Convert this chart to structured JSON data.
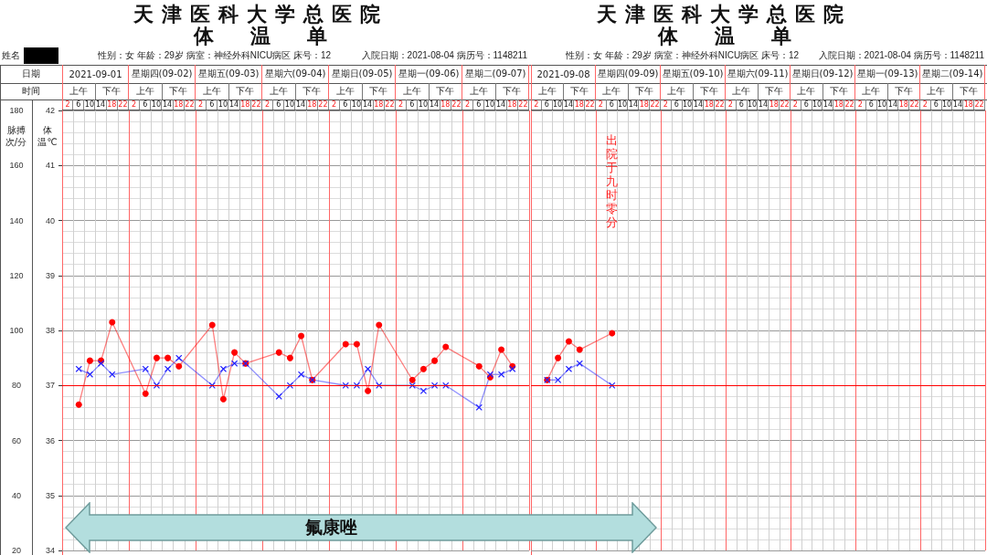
{
  "chart_data": [
    {
      "type": "line",
      "title": "天津医科大学总医院",
      "subtitle": "体温单",
      "ylabel": "体温℃",
      "y2label": "脉搏次/分",
      "categories": [
        "2",
        "6",
        "10",
        "14",
        "18",
        "22",
        "2",
        "6",
        "10",
        "14",
        "18",
        "22",
        "2",
        "6",
        "10",
        "14",
        "18",
        "22",
        "2",
        "6",
        "10",
        "14",
        "18",
        "22",
        "2",
        "6",
        "10",
        "14",
        "18",
        "22",
        "2",
        "6",
        "10",
        "14",
        "18",
        "22",
        "2",
        "6",
        "10",
        "14",
        "18",
        "22"
      ],
      "series": [
        {
          "color": "#ff0000",
          "axis": "y2",
          "marker": "circle",
          "values": [
            null,
            73,
            89,
            89,
            103,
            null,
            null,
            77,
            90,
            90,
            87,
            null,
            null,
            102,
            75,
            92,
            88,
            null,
            null,
            92,
            90,
            98,
            82,
            null,
            null,
            95,
            95,
            78,
            102,
            null,
            null,
            82,
            86,
            89,
            94,
            null,
            null,
            87,
            83,
            93,
            87,
            null
          ]
        },
        {
          "color": "#2222ff",
          "axis": "y",
          "marker": "cross",
          "values": [
            null,
            37.3,
            37.2,
            37.4,
            37.2,
            null,
            null,
            37.3,
            37.0,
            37.3,
            37.5,
            null,
            null,
            37.0,
            37.3,
            37.4,
            37.4,
            null,
            null,
            36.8,
            37.0,
            37.2,
            37.1,
            null,
            null,
            37.0,
            37.0,
            37.3,
            37.0,
            null,
            null,
            37.0,
            36.9,
            37.0,
            37.0,
            null,
            null,
            36.6,
            37.2,
            37.2,
            37.3,
            null
          ]
        }
      ],
      "ylim": [
        34,
        42
      ],
      "yticks": [
        34,
        35,
        36,
        37,
        38,
        39,
        40,
        41,
        42
      ],
      "y2lim": [
        20,
        180
      ],
      "y2ticks": [
        20,
        40,
        60,
        80,
        100,
        120,
        140,
        160,
        180
      ],
      "grid": true,
      "ref_lines": [
        {
          "axis": "y",
          "value": 37,
          "color": "#ff0000"
        }
      ],
      "annotations": [
        "氟康唑",
        "姓名",
        "性别：女  年龄：29岁  病室：神经外科NICU病区 床号：12",
        "入院日期：2021-08-04 病历号：1148211",
        "日期",
        "时间",
        "2021-09-01",
        "星期四(09-02)",
        "星期五(09-03)",
        "星期六(09-04)",
        "星期日(09-05)",
        "星期一(09-06)",
        "星期二(09-07)",
        "上午",
        "下午",
        "上午",
        "下午",
        "上午",
        "下午",
        "上午",
        "下午",
        "上午",
        "下午",
        "上午",
        "下午",
        "上午",
        "下午"
      ]
    },
    {
      "type": "line",
      "title": "天津医科大学总医院",
      "subtitle": "体温单",
      "categories": [
        "2",
        "6",
        "10",
        "14",
        "18",
        "22",
        "2",
        "6",
        "10",
        "14",
        "18",
        "22",
        "2",
        "6",
        "10",
        "14",
        "18",
        "22",
        "2",
        "6",
        "10",
        "14",
        "18",
        "22",
        "2",
        "6",
        "10",
        "14",
        "18",
        "22",
        "2",
        "6",
        "10",
        "14",
        "18",
        "22",
        "2",
        "6",
        "10",
        "14",
        "18",
        "22"
      ],
      "series": [
        {
          "color": "#ff0000",
          "axis": "y2",
          "marker": "circle",
          "values": [
            null,
            82,
            90,
            96,
            93,
            null,
            null,
            99,
            null,
            null,
            null,
            null,
            null,
            null,
            null,
            null,
            null,
            null,
            null,
            null,
            null,
            null,
            null,
            null,
            null,
            null,
            null,
            null,
            null,
            null,
            null,
            null,
            null,
            null,
            null,
            null,
            null,
            null,
            null,
            null,
            null,
            null
          ]
        },
        {
          "color": "#2222ff",
          "axis": "y",
          "marker": "cross",
          "values": [
            null,
            37.1,
            37.1,
            37.3,
            37.4,
            null,
            null,
            37.0,
            null,
            null,
            null,
            null,
            null,
            null,
            null,
            null,
            null,
            null,
            null,
            null,
            null,
            null,
            null,
            null,
            null,
            null,
            null,
            null,
            null,
            null,
            null,
            null,
            null,
            null,
            null,
            null,
            null,
            null,
            null,
            null,
            null,
            null
          ]
        }
      ],
      "ylim": [
        34,
        42
      ],
      "yticks": [
        34,
        35,
        36,
        37,
        38,
        39,
        40,
        41,
        42
      ],
      "y2lim": [
        20,
        180
      ],
      "y2ticks": [
        20,
        40,
        60,
        80,
        100,
        120,
        140,
        160,
        180
      ],
      "grid": true,
      "tick_labels": "x",
      "ref_lines": [
        {
          "axis": "y",
          "value": 37,
          "color": "#ff0000"
        }
      ],
      "annotations": [
        "出院于九时零分",
        "性别：女  年龄：29岁  病室：神经外科NICU病区 床号：12",
        "入院日期：2021-08-04 病历号：1148211",
        "2021-09-08",
        "星期四(09-09)",
        "星期五(09-10)",
        "星期六(09-11)",
        "星期日(09-12)",
        "星期一(09-13)",
        "星期二(09-14)",
        "上午",
        "下午",
        "上午",
        "下午",
        "上午",
        "下午",
        "上午",
        "下午",
        "上午",
        "下午",
        "上午",
        "下午",
        "上午",
        "下午"
      ]
    }
  ]
}
